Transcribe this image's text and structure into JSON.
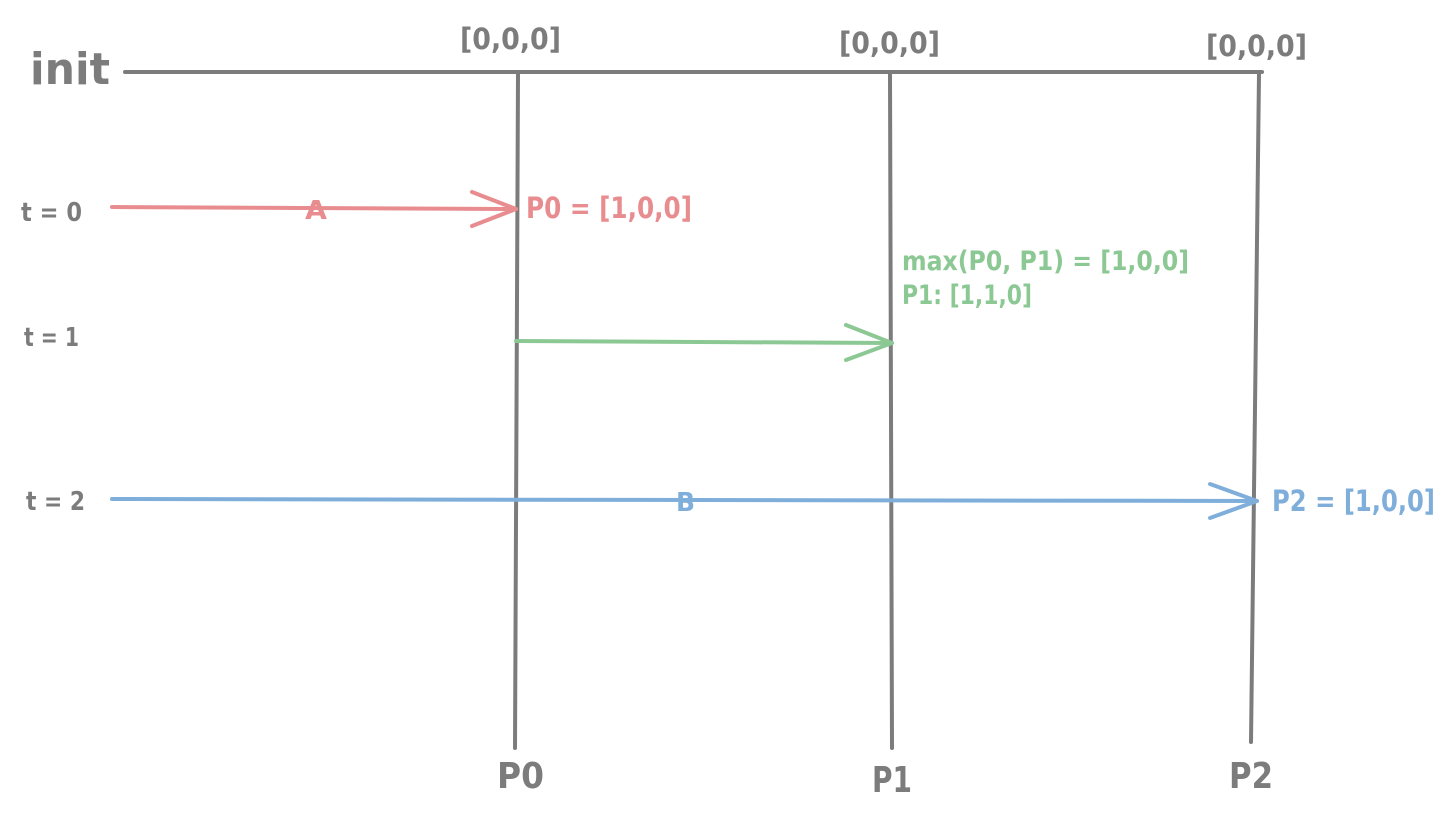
{
  "init_label": "init",
  "initial_vectors": [
    "[0,0,0]",
    "[0,0,0]",
    "[0,0,0]"
  ],
  "processes": [
    "P0",
    "P1",
    "P2"
  ],
  "time_labels": [
    "t = 0",
    "t = 1",
    "t = 2"
  ],
  "events": {
    "a": {
      "label": "A",
      "result": "P0 = [1,0,0]"
    },
    "p1_merge": {
      "line1": "max(P0, P1) = [1,0,0]",
      "line2": "P1: [1,1,0]"
    },
    "b": {
      "label": "B",
      "result": "P2 = [1,0,0]"
    }
  },
  "colors": {
    "axis": "#7c7c7c",
    "event_a": "#e88c8f",
    "message_p0_p1": "#8cc893",
    "event_b": "#7faedb"
  }
}
